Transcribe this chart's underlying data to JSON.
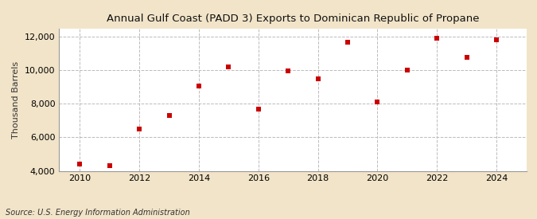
{
  "title": "Annual Gulf Coast (PADD 3) Exports to Dominican Republic of Propane",
  "ylabel": "Thousand Barrels",
  "source": "Source: U.S. Energy Information Administration",
  "years": [
    2010,
    2011,
    2012,
    2013,
    2014,
    2015,
    2016,
    2017,
    2018,
    2019,
    2020,
    2021,
    2022,
    2023,
    2024
  ],
  "values": [
    4400,
    4300,
    6500,
    7300,
    9050,
    10200,
    7700,
    9950,
    9500,
    11700,
    8100,
    10000,
    11900,
    10800,
    11800
  ],
  "marker_color": "#cc0000",
  "marker": "s",
  "marker_size": 4,
  "background_color": "#f2e4c8",
  "plot_background_color": "#ffffff",
  "grid_color": "#bbbbbb",
  "grid_style": "--",
  "ylim": [
    4000,
    12500
  ],
  "xlim": [
    2009.3,
    2025.0
  ],
  "yticks": [
    4000,
    6000,
    8000,
    10000,
    12000
  ],
  "xticks": [
    2010,
    2012,
    2014,
    2016,
    2018,
    2020,
    2022,
    2024
  ],
  "title_fontsize": 9.5,
  "label_fontsize": 8,
  "tick_fontsize": 8,
  "source_fontsize": 7
}
